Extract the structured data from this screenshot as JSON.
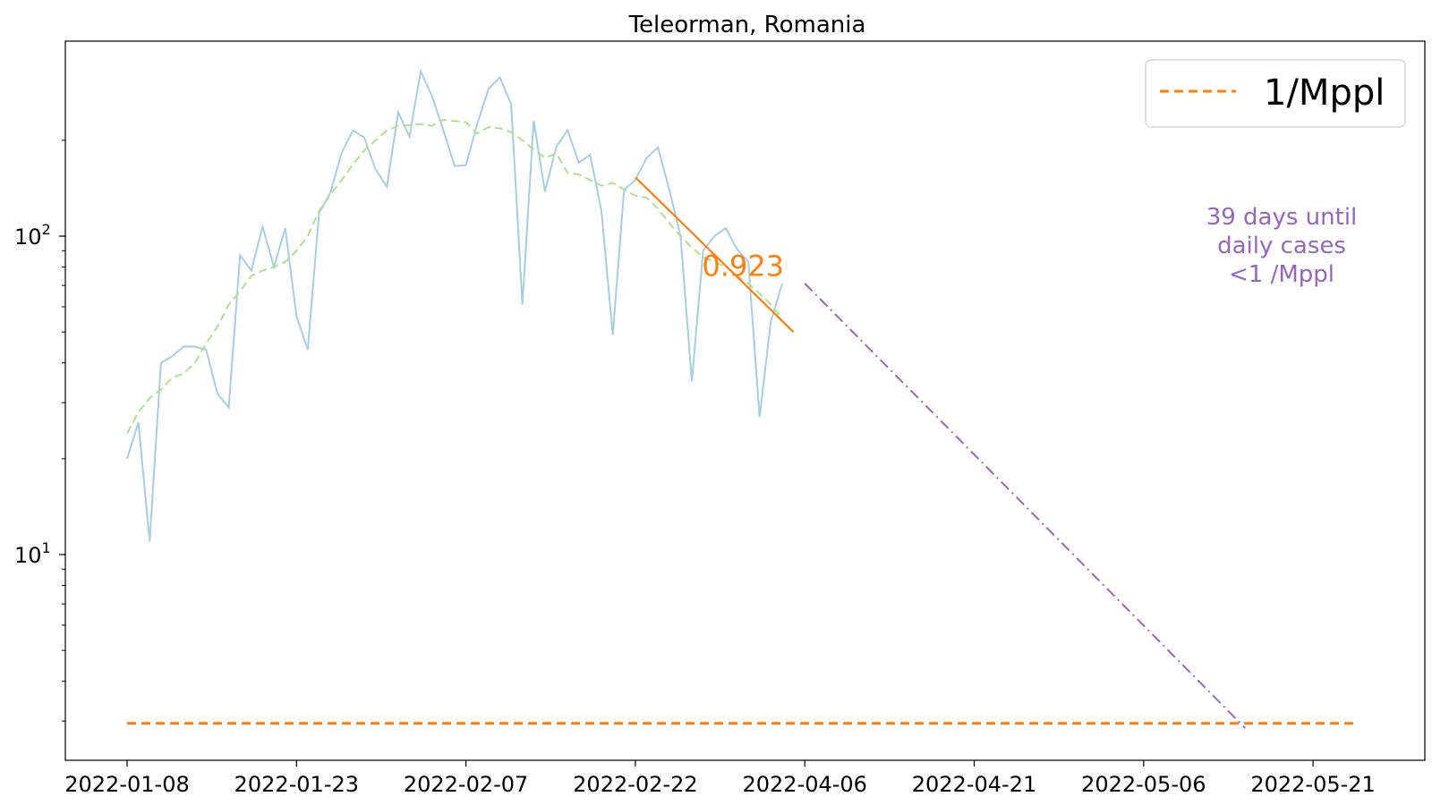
{
  "chart_data": {
    "type": "line",
    "title": "Teleorman, Romania",
    "xlabel": "",
    "ylabel": "",
    "yscale": "log",
    "ylim": [
      2.6,
      290
    ],
    "y_ticks": [
      {
        "value": 10,
        "base": "10",
        "exp": "1"
      },
      {
        "value": 100,
        "base": "10",
        "exp": "2"
      }
    ],
    "x_tick_labels": [
      "2022-01-08",
      "2022-01-23",
      "2022-02-07",
      "2022-02-22",
      "2022-04-06",
      "2022-04-21",
      "2022-05-06",
      "2022-05-21"
    ],
    "grid": false,
    "legend": {
      "placement": "top-right",
      "entries": [
        {
          "label": "1/Mppl",
          "color": "#ff7f0e",
          "style": "dashed"
        }
      ]
    },
    "series": [
      {
        "style": "solid",
        "color": "#a6cee3",
        "values": [
          20,
          26,
          11,
          40,
          42,
          45,
          45,
          44,
          32,
          29,
          87,
          78,
          107,
          80,
          106,
          56,
          44,
          118,
          137,
          183,
          215,
          204,
          162,
          143,
          245,
          205,
          330,
          275,
          215,
          166,
          167,
          225,
          290,
          315,
          260,
          61,
          230,
          138,
          191,
          215,
          170,
          180,
          120,
          49,
          140,
          150,
          176,
          190,
          140,
          100,
          35,
          90,
          100,
          106,
          91,
          83,
          27,
          54,
          71
        ]
      },
      {
        "style": "dashed",
        "color": "#b2df8a",
        "values": [
          24,
          28,
          31,
          33,
          36,
          37,
          40,
          46,
          52,
          61,
          67,
          75,
          78,
          80,
          83,
          90,
          100,
          120,
          135,
          150,
          168,
          186,
          200,
          215,
          222,
          223,
          225,
          222,
          232,
          230,
          228,
          210,
          220,
          218,
          212,
          200,
          187,
          176,
          182,
          158,
          156,
          150,
          144,
          147,
          140,
          134,
          132,
          122,
          110,
          100,
          92,
          86,
          83,
          80,
          75,
          71,
          66,
          61,
          55
        ]
      }
    ],
    "fit_line": {
      "label": "0.923",
      "color": "#ff7f0e",
      "x_range": [
        45,
        59
      ],
      "y_range": [
        153,
        50
      ]
    },
    "projection_line": {
      "color": "#9467bd",
      "style": "dashdot",
      "x_range": [
        60,
        99
      ],
      "y_range": [
        71,
        2.85
      ]
    },
    "threshold_line": {
      "color": "#ff7f0e",
      "style": "dashed",
      "y": 2.95,
      "x_range": [
        0,
        109
      ]
    },
    "annotation": {
      "lines": [
        "39 days until",
        "daily cases",
        "<1 /Mppl"
      ],
      "color": "#9467bd"
    }
  }
}
